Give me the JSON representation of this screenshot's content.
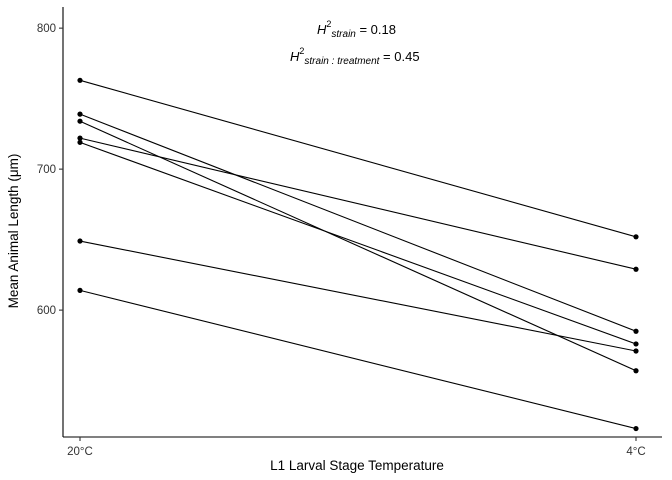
{
  "chart_data": {
    "type": "line",
    "xlabel": "L1 Larval Stage Temperature",
    "ylabel": "Mean Animal Length (μm)",
    "categories": [
      "20°C",
      "4°C"
    ],
    "ylim": [
      510,
      815
    ],
    "yticks": [
      600,
      700,
      800
    ],
    "grid": false,
    "series": [
      {
        "values": [
          763,
          652
        ]
      },
      {
        "values": [
          739,
          585
        ]
      },
      {
        "values": [
          734,
          557
        ]
      },
      {
        "values": [
          722,
          629
        ]
      },
      {
        "values": [
          719,
          576
        ]
      },
      {
        "values": [
          649,
          571
        ]
      },
      {
        "values": [
          614,
          516
        ]
      }
    ],
    "annotations": [
      {
        "symbol": "H",
        "superscript": "2",
        "subscript": "strain",
        "equals": " = 0.18"
      },
      {
        "symbol": "H",
        "superscript": "2",
        "subscript": "strain : treatment",
        "equals": " = 0.45"
      }
    ]
  }
}
